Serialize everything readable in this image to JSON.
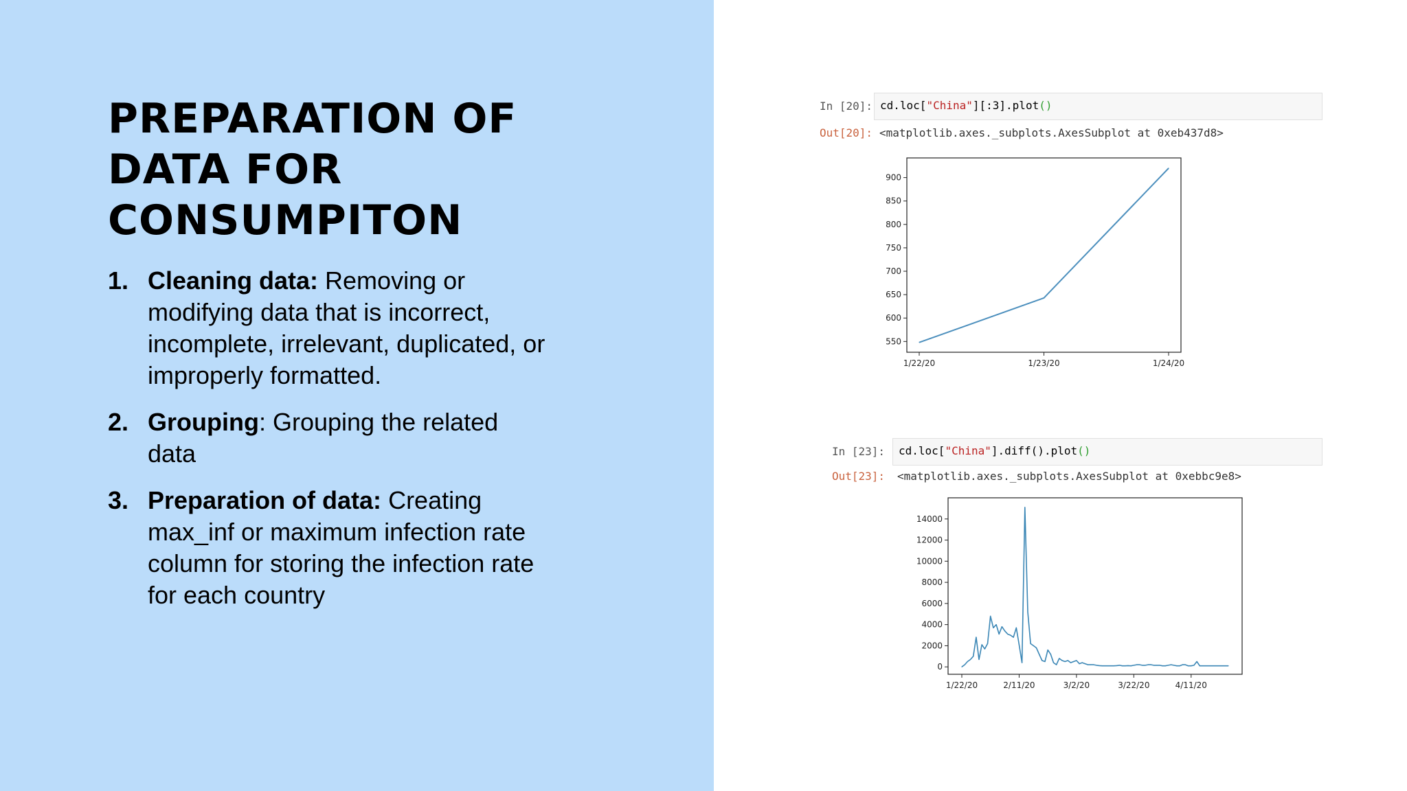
{
  "slide": {
    "title_lines": [
      "PREPARATION OF",
      "DATA FOR",
      "CONSUMPITON"
    ],
    "items": [
      {
        "num": "1.",
        "term": "Cleaning data:",
        "text": "  Removing or modifying data that is incorrect, incomplete, irrelevant, duplicated, or improperly formatted."
      },
      {
        "num": "2.",
        "term": "Grouping",
        "text": ":  Grouping the related data"
      },
      {
        "num": "3.",
        "term": "Preparation of data:",
        "text": " Creating max_inf or maximum infection rate column for storing the infection rate for each country"
      }
    ]
  },
  "notebook": {
    "cell1": {
      "in_prompt": "In [20]:",
      "code_a": "cd.loc[",
      "code_str": "\"China\"",
      "code_b": "][:3].plot",
      "code_paren": "()",
      "out_prompt": "Out[20]:",
      "output": "<matplotlib.axes._subplots.AxesSubplot at 0xeb437d8>"
    },
    "cell2": {
      "in_prompt": "In [23]:",
      "code_a": "cd.loc[",
      "code_str": "\"China\"",
      "code_b": "].diff().plot",
      "code_paren": "()",
      "out_prompt": "Out[23]:",
      "output": "<matplotlib.axes._subplots.AxesSubplot at 0xebbc9e8>"
    }
  },
  "chart_data": [
    {
      "type": "line",
      "x": [
        "1/22/20",
        "1/23/20",
        "1/24/20"
      ],
      "values": [
        548,
        643,
        920
      ],
      "xticks": [
        "1/22/20",
        "1/23/20",
        "1/24/20"
      ],
      "yticks": [
        550,
        600,
        650,
        700,
        750,
        800,
        850,
        900
      ],
      "ylim": [
        527,
        942
      ],
      "color": "#4c8fbd"
    },
    {
      "type": "line",
      "values": [
        0,
        200,
        500,
        700,
        1000,
        2800,
        700,
        2100,
        1700,
        2200,
        4800,
        3700,
        4000,
        3100,
        3800,
        3400,
        3100,
        3000,
        2800,
        3700,
        2100,
        400,
        15100,
        5200,
        2200,
        2000,
        1800,
        1200,
        600,
        500,
        1600,
        1200,
        400,
        200,
        800,
        600,
        500,
        600,
        400,
        500,
        600,
        300,
        400,
        300,
        200,
        200,
        200,
        150,
        120,
        100,
        100,
        100,
        100,
        100,
        120,
        150,
        100,
        100,
        120,
        100,
        150,
        200,
        200,
        150,
        150,
        200,
        200,
        150,
        150,
        150,
        100,
        100,
        150,
        200,
        150,
        100,
        100,
        200,
        200,
        100,
        100,
        150,
        500,
        100,
        100,
        100,
        100,
        100,
        100,
        100,
        100,
        100,
        100,
        100
      ],
      "xticks": [
        "1/22/20",
        "2/11/20",
        "3/2/20",
        "3/22/20",
        "4/11/20"
      ],
      "xtick_index": [
        0,
        20,
        40,
        60,
        80
      ],
      "yticks": [
        0,
        2000,
        4000,
        6000,
        8000,
        10000,
        12000,
        14000
      ],
      "ylim": [
        -700,
        16000
      ],
      "color": "#3a86b5"
    }
  ]
}
